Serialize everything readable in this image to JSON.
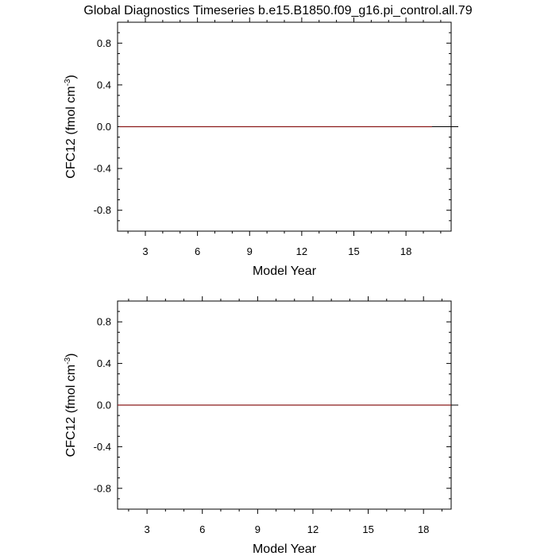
{
  "title": "Global Diagnostics Timeseries b.e15.B1850.f09_g16.pi_control.all.79",
  "colors": {
    "series": "#8b1a1a",
    "zero_line": "#000000",
    "frame": "#000000"
  },
  "chart_data": [
    {
      "type": "line",
      "xlabel": "Model Year",
      "ylabel": "CFC12 (fmol cm",
      "ylabel_sup": "-3",
      "ylabel_close": ")",
      "xlim": [
        1.4,
        20.6
      ],
      "ylim": [
        -1,
        1
      ],
      "xticks": [
        3,
        6,
        9,
        12,
        15,
        18
      ],
      "xtick_labels": [
        "3",
        "6",
        "9",
        "12",
        "15",
        "18"
      ],
      "yticks": [
        0.8,
        0.4,
        0.0,
        -0.4,
        -0.8
      ],
      "ytick_labels": [
        "0.8",
        "0.4",
        "0.0",
        "-0.4",
        "-0.8"
      ],
      "series": [
        {
          "x": [
            1.5,
            19.5
          ],
          "y": [
            0,
            0
          ]
        }
      ]
    },
    {
      "type": "line",
      "xlabel": "Model Year",
      "ylabel": "CFC12 (fmol cm",
      "ylabel_sup": "-3",
      "ylabel_close": ")",
      "xlim": [
        1.4,
        19.5
      ],
      "ylim": [
        -1,
        1
      ],
      "xticks": [
        3,
        6,
        9,
        12,
        15,
        18
      ],
      "xtick_labels": [
        "3",
        "6",
        "9",
        "12",
        "15",
        "18"
      ],
      "yticks": [
        0.8,
        0.4,
        0.0,
        -0.4,
        -0.8
      ],
      "ytick_labels": [
        "0.8",
        "0.4",
        "0.0",
        "-0.4",
        "-0.8"
      ],
      "series": [
        {
          "x": [
            1.4,
            19.5
          ],
          "y": [
            0,
            0
          ]
        }
      ]
    }
  ]
}
